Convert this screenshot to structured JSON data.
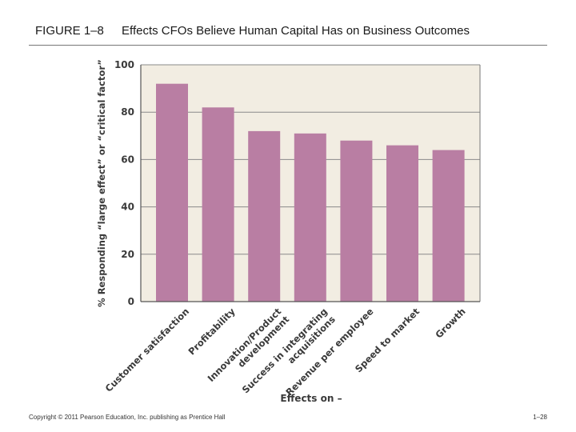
{
  "header": {
    "figure_label": "FIGURE 1–8",
    "title": "Effects CFOs Believe Human Capital Has on Business Outcomes"
  },
  "footer": {
    "copyright": "Copyright © 2011 Pearson Education, Inc. publishing as Prentice Hall",
    "page": "1–28"
  },
  "colors": {
    "bar": "#b97ea3",
    "plot_background": "#f2ede2",
    "gridline": "#8a8a8a"
  },
  "chart_data": {
    "type": "bar",
    "ylabel": "% Responding “large effect” or “critical factor”",
    "xlabel": "Effects on –",
    "ylim": [
      0,
      100
    ],
    "yticks": [
      0,
      20,
      40,
      60,
      80,
      100
    ],
    "grid": true,
    "categories": [
      {
        "lines": [
          "Customer satisfaction"
        ]
      },
      {
        "lines": [
          "Profitability"
        ]
      },
      {
        "lines": [
          "Innovation/Product",
          "development"
        ]
      },
      {
        "lines": [
          "Success in integrating",
          "acquisitions"
        ]
      },
      {
        "lines": [
          "Revenue per employee"
        ]
      },
      {
        "lines": [
          "Speed to market"
        ]
      },
      {
        "lines": [
          "Growth"
        ]
      }
    ],
    "values": [
      92,
      82,
      72,
      71,
      68,
      66,
      64
    ]
  }
}
